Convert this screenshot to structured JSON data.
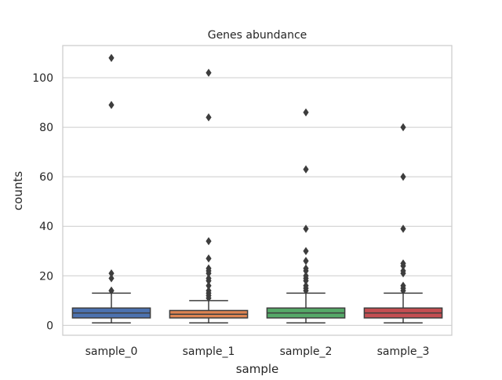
{
  "chart_data": {
    "type": "box",
    "title": "Genes abundance",
    "xlabel": "sample",
    "ylabel": "counts",
    "ylim": [
      -4,
      113
    ],
    "yticks": [
      0,
      20,
      40,
      60,
      80,
      100
    ],
    "grid": "horizontal",
    "legend": "none",
    "categories": [
      "sample_0",
      "sample_1",
      "sample_2",
      "sample_3"
    ],
    "series": [
      {
        "color": "#4c72b0",
        "whisker_low": 1,
        "q1": 3,
        "median": 5,
        "q3": 7,
        "whisker_high": 13,
        "outliers": [
          14,
          14,
          19,
          21,
          89,
          108
        ]
      },
      {
        "color": "#dd8452",
        "whisker_low": 1,
        "q1": 3,
        "median": 4.5,
        "q3": 6,
        "whisker_high": 10,
        "outliers": [
          11,
          12,
          13,
          14,
          16,
          18,
          19,
          21,
          22,
          23,
          27,
          34,
          84,
          102
        ]
      },
      {
        "color": "#55a868",
        "whisker_low": 1,
        "q1": 3,
        "median": 5,
        "q3": 7,
        "whisker_high": 13,
        "outliers": [
          14,
          15,
          16,
          18,
          19,
          20,
          22,
          23,
          26,
          30,
          39,
          63,
          86
        ]
      },
      {
        "color": "#c44e52",
        "whisker_low": 1,
        "q1": 3,
        "median": 5,
        "q3": 7,
        "whisker_high": 13,
        "outliers": [
          14,
          15,
          16,
          21,
          22,
          24,
          25,
          39,
          60,
          80
        ]
      }
    ]
  }
}
